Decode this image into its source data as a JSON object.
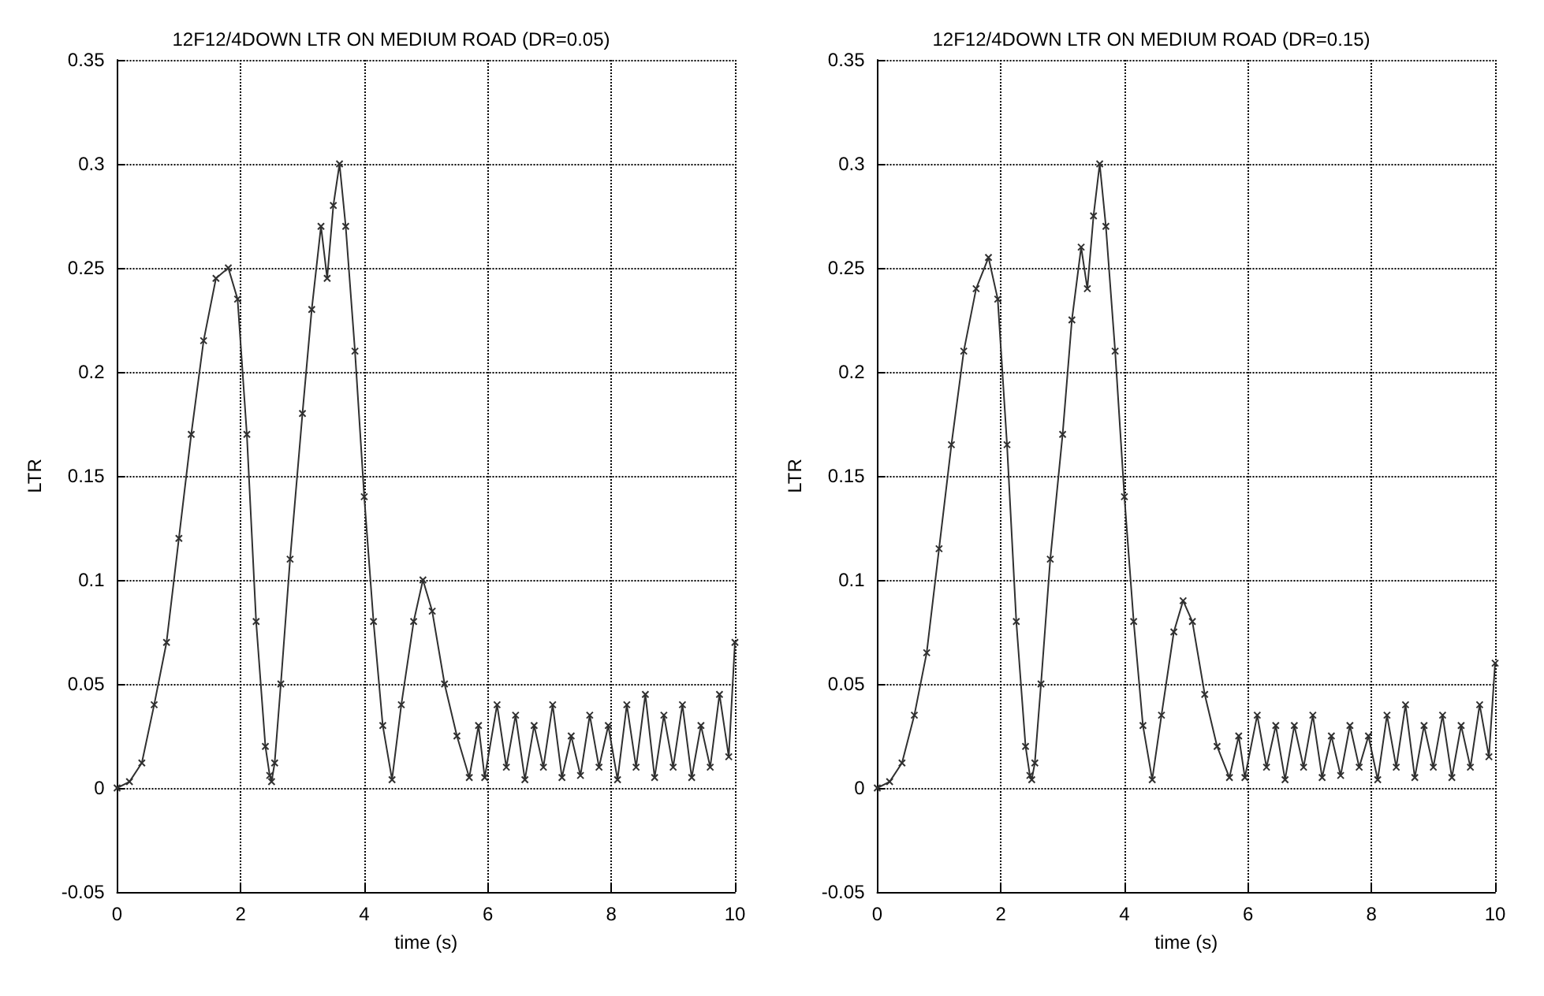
{
  "chart_data": [
    {
      "type": "line",
      "title": "12F12/4DOWN LTR ON MEDIUM ROAD (DR=0.05)",
      "xlabel": "time (s)",
      "ylabel": "LTR",
      "xlim": [
        0,
        10
      ],
      "xticks": [
        0,
        2,
        4,
        6,
        8,
        10
      ],
      "ylim": [
        -0.05,
        0.35
      ],
      "yticks": [
        -0.05,
        0,
        0.05,
        0.1,
        0.15,
        0.2,
        0.25,
        0.3,
        0.35
      ],
      "grid": true,
      "marker": "cross",
      "line_style": "solid",
      "series": [
        {
          "color": "#303030",
          "x": [
            0,
            0.2,
            0.4,
            0.6,
            0.8,
            1.0,
            1.2,
            1.4,
            1.6,
            1.8,
            1.95,
            2.1,
            2.25,
            2.4,
            2.47,
            2.5,
            2.55,
            2.65,
            2.8,
            3.0,
            3.15,
            3.3,
            3.4,
            3.5,
            3.6,
            3.7,
            3.85,
            4.0,
            4.15,
            4.3,
            4.45,
            4.6,
            4.8,
            4.95,
            5.1,
            5.3,
            5.5,
            5.7,
            5.85,
            5.95,
            6.15,
            6.3,
            6.45,
            6.6,
            6.75,
            6.9,
            7.05,
            7.2,
            7.35,
            7.5,
            7.65,
            7.8,
            7.95,
            8.1,
            8.25,
            8.4,
            8.55,
            8.7,
            8.85,
            9.0,
            9.15,
            9.3,
            9.45,
            9.6,
            9.75,
            9.9,
            10
          ],
          "values": [
            0,
            0.003,
            0.012,
            0.04,
            0.07,
            0.12,
            0.17,
            0.215,
            0.245,
            0.25,
            0.235,
            0.17,
            0.08,
            0.02,
            0.006,
            0.003,
            0.012,
            0.05,
            0.11,
            0.18,
            0.23,
            0.27,
            0.245,
            0.28,
            0.3,
            0.27,
            0.21,
            0.14,
            0.08,
            0.03,
            0.004,
            0.04,
            0.08,
            0.1,
            0.085,
            0.05,
            0.025,
            0.005,
            0.03,
            0.005,
            0.04,
            0.01,
            0.035,
            0.004,
            0.03,
            0.01,
            0.04,
            0.005,
            0.025,
            0.006,
            0.035,
            0.01,
            0.03,
            0.004,
            0.04,
            0.01,
            0.045,
            0.005,
            0.035,
            0.01,
            0.04,
            0.005,
            0.03,
            0.01,
            0.045,
            0.015,
            0.07
          ]
        }
      ]
    },
    {
      "type": "line",
      "title": "12F12/4DOWN LTR ON MEDIUM ROAD (DR=0.15)",
      "xlabel": "time (s)",
      "ylabel": "LTR",
      "xlim": [
        0,
        10
      ],
      "xticks": [
        0,
        2,
        4,
        6,
        8,
        10
      ],
      "ylim": [
        -0.05,
        0.35
      ],
      "yticks": [
        -0.05,
        0,
        0.05,
        0.1,
        0.15,
        0.2,
        0.25,
        0.3,
        0.35
      ],
      "grid": true,
      "marker": "cross",
      "line_style": "solid",
      "series": [
        {
          "color": "#303030",
          "x": [
            0,
            0.2,
            0.4,
            0.6,
            0.8,
            1.0,
            1.2,
            1.4,
            1.6,
            1.8,
            1.95,
            2.1,
            2.25,
            2.4,
            2.47,
            2.5,
            2.55,
            2.65,
            2.8,
            3.0,
            3.15,
            3.3,
            3.4,
            3.5,
            3.6,
            3.7,
            3.85,
            4.0,
            4.15,
            4.3,
            4.45,
            4.6,
            4.8,
            4.95,
            5.1,
            5.3,
            5.5,
            5.7,
            5.85,
            5.95,
            6.15,
            6.3,
            6.45,
            6.6,
            6.75,
            6.9,
            7.05,
            7.2,
            7.35,
            7.5,
            7.65,
            7.8,
            7.95,
            8.1,
            8.25,
            8.4,
            8.55,
            8.7,
            8.85,
            9.0,
            9.15,
            9.3,
            9.45,
            9.6,
            9.75,
            9.9,
            10
          ],
          "values": [
            0,
            0.003,
            0.012,
            0.035,
            0.065,
            0.115,
            0.165,
            0.21,
            0.24,
            0.255,
            0.235,
            0.165,
            0.08,
            0.02,
            0.006,
            0.004,
            0.012,
            0.05,
            0.11,
            0.17,
            0.225,
            0.26,
            0.24,
            0.275,
            0.3,
            0.27,
            0.21,
            0.14,
            0.08,
            0.03,
            0.004,
            0.035,
            0.075,
            0.09,
            0.08,
            0.045,
            0.02,
            0.005,
            0.025,
            0.005,
            0.035,
            0.01,
            0.03,
            0.004,
            0.03,
            0.01,
            0.035,
            0.005,
            0.025,
            0.006,
            0.03,
            0.01,
            0.025,
            0.004,
            0.035,
            0.01,
            0.04,
            0.005,
            0.03,
            0.01,
            0.035,
            0.005,
            0.03,
            0.01,
            0.04,
            0.015,
            0.06
          ]
        }
      ]
    }
  ]
}
